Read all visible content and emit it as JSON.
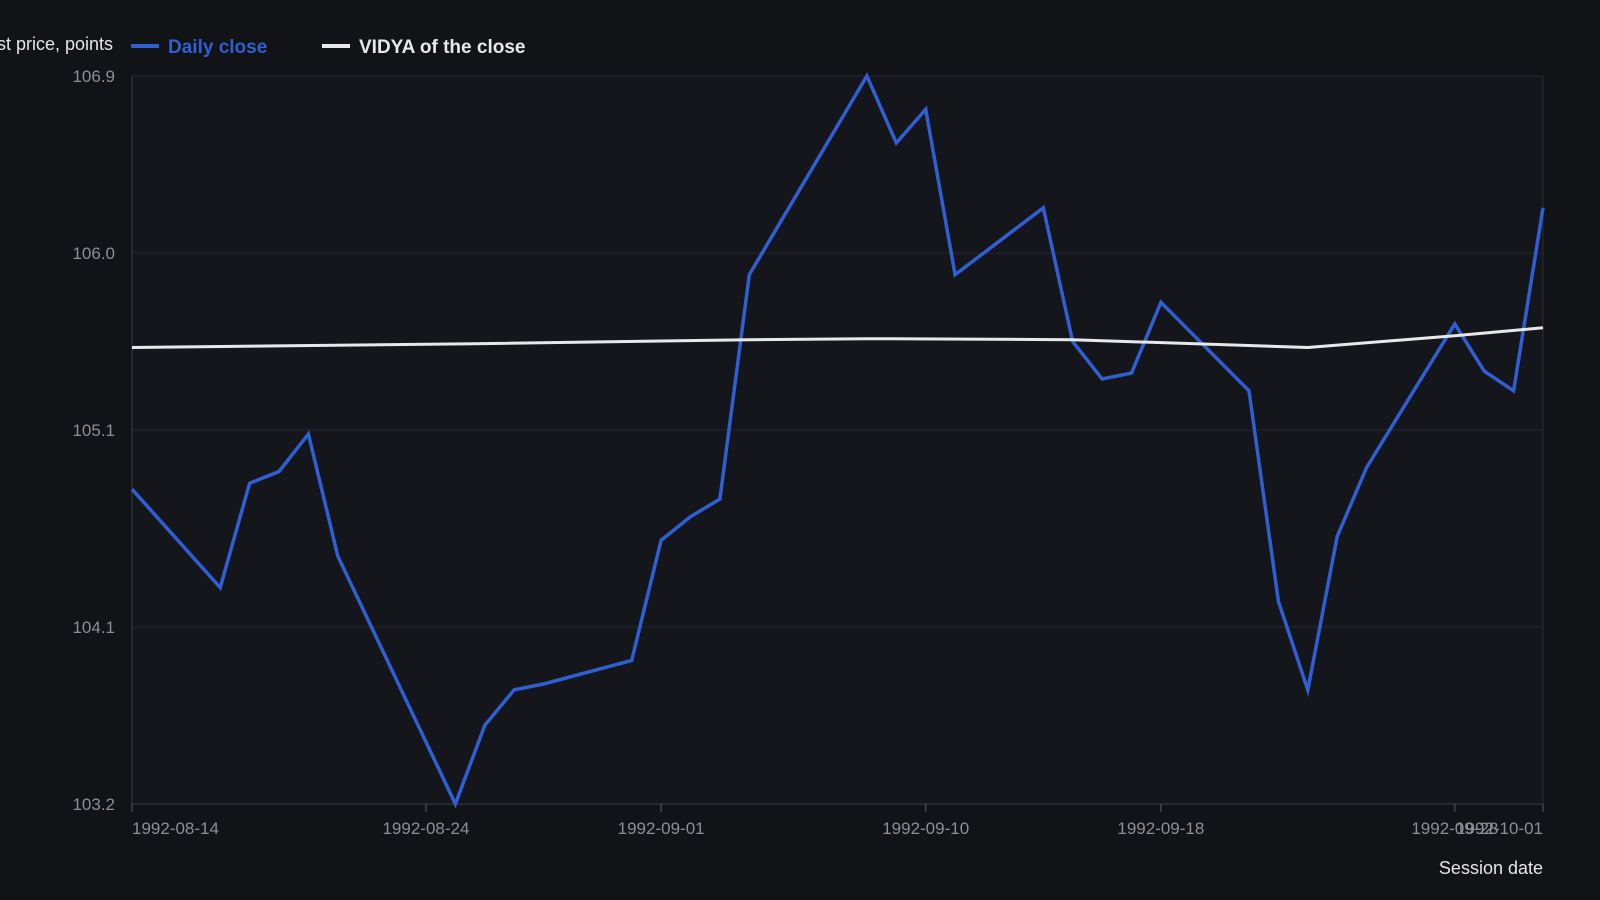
{
  "chart_data": {
    "type": "line",
    "title": "",
    "ylabel": "Last price, points",
    "xlabel": "Session date",
    "ylim": [
      103.2,
      106.9
    ],
    "yticks": [
      "103.2",
      "104.1",
      "105.1",
      "106.0",
      "106.9"
    ],
    "xticks": [
      "1992-08-14",
      "1992-08-24",
      "1992-09-01",
      "1992-09-10",
      "1992-09-18",
      "1992-09-28",
      "1992-10-01"
    ],
    "xlim": [
      "1992-08-14",
      "1992-10-01"
    ],
    "grid": true,
    "legend_position": "top-left",
    "series": [
      {
        "name": "Daily close",
        "color": "#2f5fd3",
        "points": [
          [
            "1992-08-14",
            104.8
          ],
          [
            "1992-08-17",
            104.3
          ],
          [
            "1992-08-18",
            104.83
          ],
          [
            "1992-08-19",
            104.89
          ],
          [
            "1992-08-20",
            105.08
          ],
          [
            "1992-08-21",
            104.46
          ],
          [
            "1992-08-25",
            103.2
          ],
          [
            "1992-08-26",
            103.6
          ],
          [
            "1992-08-27",
            103.78
          ],
          [
            "1992-08-28",
            103.81
          ],
          [
            "1992-08-31",
            103.93
          ],
          [
            "1992-09-01",
            104.54
          ],
          [
            "1992-09-02",
            104.66
          ],
          [
            "1992-09-03",
            104.75
          ],
          [
            "1992-09-04",
            105.89
          ],
          [
            "1992-09-08",
            106.9
          ],
          [
            "1992-09-09",
            106.56
          ],
          [
            "1992-09-10",
            106.73
          ],
          [
            "1992-09-11",
            105.89
          ],
          [
            "1992-09-14",
            106.23
          ],
          [
            "1992-09-15",
            105.55
          ],
          [
            "1992-09-16",
            105.36
          ],
          [
            "1992-09-17",
            105.39
          ],
          [
            "1992-09-18",
            105.75
          ],
          [
            "1992-09-21",
            105.3
          ],
          [
            "1992-09-22",
            104.23
          ],
          [
            "1992-09-23",
            103.78
          ],
          [
            "1992-09-24",
            104.56
          ],
          [
            "1992-09-25",
            104.91
          ],
          [
            "1992-09-28",
            105.64
          ],
          [
            "1992-09-29",
            105.4
          ],
          [
            "1992-09-30",
            105.3
          ],
          [
            "1992-10-01",
            106.23
          ]
        ]
      },
      {
        "name": "VIDYA of the close",
        "color": "#e8e8e8",
        "points": [
          [
            "1992-08-14",
            105.52
          ],
          [
            "1992-08-26",
            105.54
          ],
          [
            "1992-09-04",
            105.56
          ],
          [
            "1992-09-08",
            105.565
          ],
          [
            "1992-09-15",
            105.56
          ],
          [
            "1992-09-23",
            105.52
          ],
          [
            "1992-09-28",
            105.58
          ],
          [
            "1992-10-01",
            105.62
          ]
        ]
      }
    ]
  }
}
